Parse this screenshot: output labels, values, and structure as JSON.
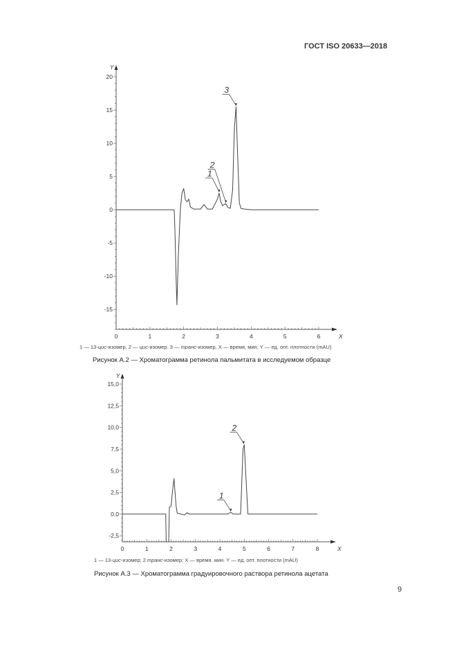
{
  "header": {
    "doc_id": "ГОСТ ISO 20633—2018"
  },
  "page_number": "9",
  "figures": [
    {
      "id": "A2",
      "legend": {
        "l1": "1 — 13-",
        "l1i": "цис",
        "l2": "-изомер, 2 — ",
        "l2i": "цис",
        "l3": "-изомер. 3 — ",
        "l3i": "транс",
        "l4": "-изомер, X — время, мин; Y — ед. опт. плотности (mAU)"
      },
      "caption": "Рисунок А.2 — Хроматограмма ретинола пальмитата в исследуемом образце"
    },
    {
      "id": "A3",
      "legend": {
        "l1": "1 — 13-",
        "l1i": "цис",
        "l2": "-изомер; 2    ",
        "l2i": "транс",
        "l3": "-изомер; X — время. мин. Y — ед. опт. плотности (mAU)"
      },
      "caption": "Рисунок А.3 — Хроматограмма градуировочного раствора ретинола ацетата"
    }
  ],
  "chart_data": [
    {
      "type": "line",
      "title": "Рисунок А.2 — Хроматограмма ретинола пальмитата в исследуемом образце",
      "xlabel": "X",
      "ylabel": "Y",
      "xlim": [
        0,
        6
      ],
      "ylim": [
        -18,
        20
      ],
      "xticks": [
        "0",
        "1",
        "2",
        "3",
        "4",
        "5",
        "6"
      ],
      "yticks": [
        "-15",
        "-10",
        "-5",
        "0",
        "5",
        "10",
        "15",
        "20"
      ],
      "grid": false,
      "series": [
        {
          "name": "chromatogram",
          "x": [
            0,
            1.72,
            1.74,
            1.78,
            1.8,
            1.84,
            1.9,
            1.95,
            2.0,
            2.05,
            2.1,
            2.15,
            2.2,
            2.3,
            2.5,
            2.6,
            2.7,
            2.85,
            3.0,
            3.05,
            3.1,
            3.15,
            3.2,
            3.25,
            3.3,
            3.38,
            3.45,
            3.5,
            3.55,
            3.6,
            3.65,
            3.7,
            3.8,
            4.0,
            6.0
          ],
          "y": [
            0,
            0,
            -3,
            -11,
            -14.3,
            -7,
            0,
            2.5,
            3.2,
            1.5,
            1.2,
            1.6,
            0.4,
            0.1,
            0.1,
            0.8,
            0.1,
            0.1,
            1.6,
            2.5,
            1.2,
            0.6,
            0.8,
            0.9,
            0.4,
            0.2,
            3,
            12,
            15.5,
            8,
            1,
            0.2,
            0.1,
            0,
            0
          ]
        }
      ],
      "annotations": [
        {
          "label": "1",
          "x": 3.05,
          "y": 2.5,
          "text": "13-цис-изомер"
        },
        {
          "label": "2",
          "x": 3.25,
          "y": 0.9,
          "text": "цис-изомер"
        },
        {
          "label": "3",
          "x": 3.55,
          "y": 15.5,
          "text": "транс-изомер"
        }
      ]
    },
    {
      "type": "line",
      "title": "Рисунок А.3 — Хроматограмма градуировочного раствора ретинола ацетата",
      "xlabel": "X",
      "ylabel": "Y",
      "xlim": [
        0,
        8
      ],
      "ylim": [
        -3.2,
        16
      ],
      "xticks": [
        "0",
        "1",
        "2",
        "3",
        "4",
        "5",
        "6",
        "7",
        "8"
      ],
      "yticks": [
        "-2,5",
        "0,0",
        "2,5",
        "5,0",
        "7,5",
        "10,0",
        "12,5",
        "15,0"
      ],
      "grid": false,
      "series": [
        {
          "name": "chromatogram",
          "x": [
            0,
            1.78,
            1.8,
            1.9,
            1.93,
            2.0,
            2.05,
            2.12,
            2.2,
            2.25,
            2.4,
            2.55,
            2.65,
            2.75,
            4.3,
            4.45,
            4.55,
            4.85,
            4.95,
            5.0,
            5.15,
            8.0
          ],
          "y": [
            0,
            0,
            -3.2,
            -3.2,
            0.8,
            0.9,
            2.5,
            4.1,
            1.0,
            0.1,
            0,
            -0.1,
            0.15,
            0,
            0,
            0.2,
            0,
            0,
            7.5,
            8.0,
            0,
            0
          ]
        }
      ],
      "annotations": [
        {
          "label": "1",
          "x": 4.45,
          "y": 0.2,
          "text": "13-цис-изомер"
        },
        {
          "label": "2",
          "x": 4.98,
          "y": 8.0,
          "text": "транс-изомер"
        }
      ]
    }
  ]
}
